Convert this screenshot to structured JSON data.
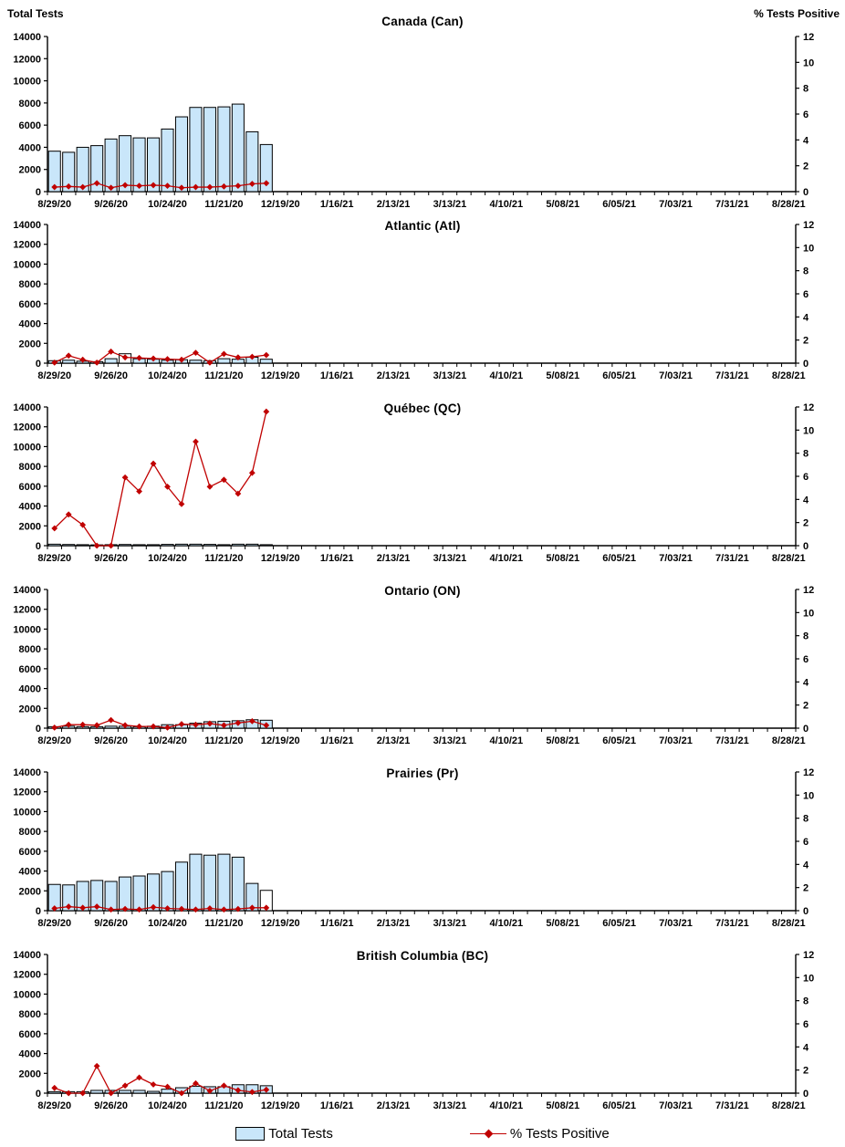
{
  "page": {
    "left_axis_title": "Total Tests",
    "right_axis_title": "% Tests Positive"
  },
  "colors": {
    "bar_fill": "#c9e6fa",
    "bar_stroke": "#000000",
    "line": "#c00000",
    "axis": "#000000"
  },
  "legend": {
    "bar_label": "Total Tests",
    "line_label": "% Tests Positive"
  },
  "axes": {
    "left_ticks": [
      0,
      2000,
      4000,
      6000,
      8000,
      10000,
      12000,
      14000
    ],
    "right_ticks": [
      0,
      2,
      4,
      6,
      8,
      10,
      12
    ],
    "ylim_left": [
      0,
      14000
    ],
    "ylim_right": [
      0,
      12
    ],
    "x_major_labels": [
      "8/29/20",
      "9/26/20",
      "10/24/20",
      "11/21/20",
      "12/19/20",
      "1/16/21",
      "2/13/21",
      "3/13/21",
      "4/10/21",
      "5/08/21",
      "6/05/21",
      "7/03/21",
      "7/31/21",
      "8/28/21"
    ],
    "weeks_per_major": 4,
    "total_weeks": 53
  },
  "week_dates": [
    "8/29/20",
    "9/05/20",
    "9/12/20",
    "9/19/20",
    "9/26/20",
    "10/03/20",
    "10/10/20",
    "10/17/20",
    "10/24/20",
    "10/31/20",
    "11/07/20",
    "11/14/20",
    "11/21/20",
    "11/28/20",
    "12/05/20",
    "12/12/20"
  ],
  "chart_data": [
    {
      "type": "bar+line",
      "title": "Canada (Can)",
      "bar_series": "Total Tests",
      "line_series": "% Tests Positive",
      "bars": [
        3650,
        3550,
        4000,
        4150,
        4750,
        5050,
        4850,
        4850,
        5650,
        6750,
        7600,
        7600,
        7650,
        7900,
        5400,
        4250
      ],
      "pct": [
        0.35,
        0.4,
        0.35,
        0.65,
        0.3,
        0.5,
        0.45,
        0.5,
        0.45,
        0.3,
        0.35,
        0.35,
        0.4,
        0.45,
        0.6,
        0.65
      ],
      "white_bar_indexes": []
    },
    {
      "type": "bar+line",
      "title": "Atlantic (Atl)",
      "bar_series": "Total Tests",
      "line_series": "% Tests Positive",
      "bars": [
        250,
        300,
        200,
        150,
        450,
        950,
        450,
        400,
        300,
        350,
        300,
        250,
        450,
        400,
        600,
        400
      ],
      "pct": [
        0.05,
        0.65,
        0.3,
        0.05,
        1.0,
        0.5,
        0.45,
        0.4,
        0.35,
        0.3,
        0.9,
        0.05,
        0.8,
        0.5,
        0.55,
        0.7
      ],
      "white_bar_indexes": [
        5
      ]
    },
    {
      "type": "bar+line",
      "title": "Québec (QC)",
      "bar_series": "Total Tests",
      "line_series": "% Tests Positive",
      "bars": [
        150,
        120,
        100,
        80,
        100,
        120,
        100,
        100,
        130,
        150,
        150,
        130,
        100,
        150,
        150,
        100
      ],
      "pct": [
        1.5,
        2.7,
        1.8,
        0.0,
        0.0,
        5.9,
        4.7,
        7.1,
        5.1,
        3.6,
        9.0,
        5.1,
        5.7,
        4.5,
        6.3,
        11.6
      ],
      "white_bar_indexes": []
    },
    {
      "type": "bar+line",
      "title": "Ontario (ON)",
      "bar_series": "Total Tests",
      "line_series": "% Tests Positive",
      "bars": [
        150,
        200,
        150,
        150,
        200,
        200,
        150,
        200,
        350,
        350,
        500,
        650,
        700,
        750,
        850,
        800
      ],
      "pct": [
        0.05,
        0.3,
        0.3,
        0.25,
        0.7,
        0.25,
        0.15,
        0.15,
        0.05,
        0.35,
        0.3,
        0.4,
        0.25,
        0.45,
        0.6,
        0.25
      ],
      "white_bar_indexes": []
    },
    {
      "type": "bar+line",
      "title": "Prairies (Pr)",
      "bar_series": "Total Tests",
      "line_series": "% Tests Positive",
      "bars": [
        2650,
        2600,
        2950,
        3050,
        2950,
        3400,
        3500,
        3700,
        3950,
        4900,
        5700,
        5600,
        5700,
        5400,
        2750,
        2050
      ],
      "pct": [
        0.2,
        0.35,
        0.25,
        0.35,
        0.1,
        0.15,
        0.1,
        0.3,
        0.2,
        0.15,
        0.1,
        0.2,
        0.1,
        0.15,
        0.25,
        0.25
      ],
      "white_bar_indexes": [
        15
      ]
    },
    {
      "type": "bar+line",
      "title": "British Columbia (BC)",
      "bar_series": "Total Tests",
      "line_series": "% Tests Positive",
      "bars": [
        150,
        150,
        150,
        280,
        280,
        280,
        280,
        180,
        400,
        550,
        700,
        650,
        650,
        850,
        850,
        750
      ],
      "pct": [
        0.45,
        0.0,
        0.0,
        2.35,
        0.0,
        0.65,
        1.35,
        0.75,
        0.55,
        0.0,
        0.85,
        0.2,
        0.65,
        0.25,
        0.1,
        0.3
      ],
      "white_bar_indexes": []
    }
  ]
}
